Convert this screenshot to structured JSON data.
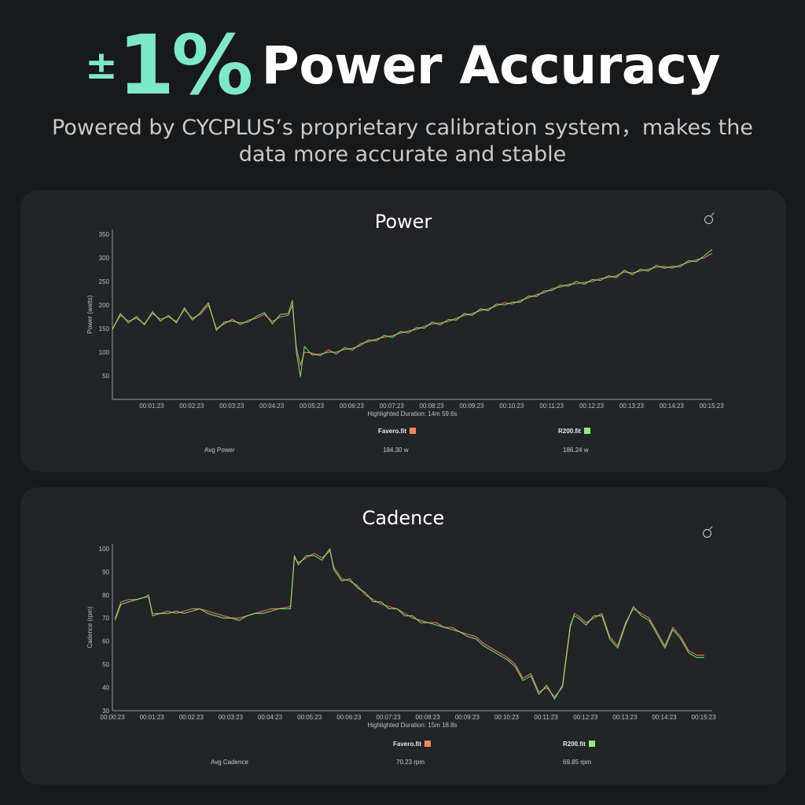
{
  "hero": {
    "plusminus": "±",
    "accent": "1%",
    "rest": "Power Accuracy",
    "subtitle_line1": "Powered by CYCPLUS’s proprietary calibration system，makes the",
    "subtitle_line2": "data more accurate and stable"
  },
  "colors": {
    "favero": "#f08a5d",
    "r200": "#8ef07a",
    "accent": "#7ee8c8"
  },
  "chart_data": [
    {
      "type": "line",
      "title": "Power",
      "ylabel": "Power (watts)",
      "xlabel": "Highlighted Duration: 14m 59.6s",
      "ylim": [
        0,
        360
      ],
      "yticks": [
        50,
        100,
        150,
        200,
        250,
        300,
        350
      ],
      "xlim_minutes": [
        0.4,
        15.4
      ],
      "xticks": [
        "00:01:23",
        "00:02:23",
        "00:03:23",
        "00:04:23",
        "00:05:23",
        "00:06:23",
        "00:07:23",
        "00:08:23",
        "00:09:23",
        "00:10:23",
        "00:11:23",
        "00:12:23",
        "00:13:23",
        "00:14:23",
        "00:15:23"
      ],
      "xtick_minutes": [
        1.383,
        2.383,
        3.383,
        4.383,
        5.383,
        6.383,
        7.383,
        8.383,
        9.383,
        10.383,
        11.383,
        12.383,
        13.383,
        14.383,
        15.383
      ],
      "grid": false,
      "legend": [
        "Favero.fit",
        "R200.fit"
      ],
      "summary_label": "Avg Power",
      "summary_values": [
        "184.30 w",
        "186.24 w"
      ],
      "x": [
        0.4,
        0.6,
        0.8,
        1.0,
        1.2,
        1.4,
        1.6,
        1.8,
        2.0,
        2.2,
        2.4,
        2.6,
        2.8,
        3.0,
        3.2,
        3.4,
        3.6,
        3.8,
        4.0,
        4.2,
        4.4,
        4.6,
        4.8,
        4.9,
        5.0,
        5.1,
        5.2,
        5.4,
        5.6,
        5.8,
        6.0,
        6.2,
        6.4,
        6.6,
        6.8,
        7.0,
        7.2,
        7.4,
        7.6,
        7.8,
        8.0,
        8.2,
        8.4,
        8.6,
        8.8,
        9.0,
        9.2,
        9.4,
        9.6,
        9.8,
        10.0,
        10.2,
        10.4,
        10.6,
        10.8,
        11.0,
        11.2,
        11.4,
        11.6,
        11.8,
        12.0,
        12.2,
        12.4,
        12.6,
        12.8,
        13.0,
        13.2,
        13.4,
        13.6,
        13.8,
        14.0,
        14.2,
        14.4,
        14.6,
        14.8,
        15.0,
        15.2,
        15.4
      ],
      "series": [
        {
          "name": "Favero.fit",
          "values": [
            150,
            178,
            166,
            172,
            160,
            182,
            170,
            175,
            165,
            190,
            172,
            180,
            200,
            150,
            160,
            170,
            158,
            168,
            172,
            180,
            165,
            175,
            178,
            200,
            110,
            72,
            100,
            98,
            92,
            105,
            96,
            110,
            104,
            118,
            122,
            128,
            132,
            135,
            140,
            145,
            148,
            155,
            160,
            162,
            165,
            172,
            178,
            182,
            188,
            192,
            198,
            205,
            202,
            210,
            215,
            222,
            226,
            235,
            238,
            244,
            245,
            248,
            250,
            256,
            258,
            262,
            270,
            268,
            272,
            276,
            280,
            282,
            278,
            285,
            290,
            296,
            300,
            310
          ]
        },
        {
          "name": "R200.fit",
          "values": [
            148,
            182,
            162,
            176,
            158,
            186,
            166,
            178,
            162,
            194,
            168,
            184,
            205,
            146,
            164,
            166,
            162,
            164,
            176,
            184,
            160,
            180,
            182,
            210,
            100,
            48,
            112,
            94,
            96,
            100,
            100,
            106,
            108,
            114,
            126,
            124,
            136,
            131,
            144,
            141,
            152,
            151,
            164,
            158,
            169,
            168,
            182,
            178,
            192,
            188,
            202,
            200,
            206,
            206,
            219,
            218,
            230,
            231,
            242,
            240,
            250,
            244,
            254,
            252,
            262,
            258,
            274,
            264,
            276,
            272,
            284,
            278,
            282,
            281,
            294,
            292,
            304,
            318
          ]
        }
      ]
    },
    {
      "type": "line",
      "title": "Cadence",
      "ylabel": "Cadence (rpm)",
      "xlabel": "Highlighted Duration: 15m 18.8s",
      "ylim": [
        30,
        102
      ],
      "yticks": [
        30,
        40,
        50,
        60,
        70,
        80,
        90,
        100
      ],
      "xlim_minutes": [
        0.383,
        15.6
      ],
      "xticks": [
        "00:00:23",
        "00:01:23",
        "00:02:23",
        "00:03:23",
        "00:04:23",
        "00:05:23",
        "00:06:23",
        "00:07:23",
        "00:08:23",
        "00:09:23",
        "00:10:23",
        "00:11:23",
        "00:12:23",
        "00:13:23",
        "00:14:23",
        "00:15:23"
      ],
      "xtick_minutes": [
        0.383,
        1.383,
        2.383,
        3.383,
        4.383,
        5.383,
        6.383,
        7.383,
        8.383,
        9.383,
        10.383,
        11.383,
        12.383,
        13.383,
        14.383,
        15.383
      ],
      "grid": false,
      "legend": [
        "Favero.fit",
        "R200.fit"
      ],
      "summary_label": "Avg Cadence",
      "summary_values": [
        "70.23 rpm",
        "69.85 rpm"
      ],
      "x": [
        0.45,
        0.6,
        0.8,
        1.0,
        1.2,
        1.3,
        1.4,
        1.6,
        1.8,
        2.0,
        2.2,
        2.4,
        2.6,
        2.8,
        3.0,
        3.2,
        3.4,
        3.6,
        3.8,
        4.0,
        4.2,
        4.4,
        4.6,
        4.9,
        5.0,
        5.1,
        5.3,
        5.5,
        5.7,
        5.9,
        6.0,
        6.2,
        6.4,
        6.6,
        6.8,
        7.0,
        7.2,
        7.4,
        7.6,
        7.8,
        8.0,
        8.2,
        8.4,
        8.6,
        8.8,
        9.0,
        9.2,
        9.4,
        9.6,
        9.8,
        10.0,
        10.2,
        10.4,
        10.6,
        10.8,
        11.0,
        11.2,
        11.4,
        11.6,
        11.8,
        12.0,
        12.1,
        12.2,
        12.4,
        12.6,
        12.8,
        13.0,
        13.2,
        13.4,
        13.6,
        13.8,
        14.0,
        14.2,
        14.4,
        14.6,
        14.8,
        15.0,
        15.2,
        15.4
      ],
      "series": [
        {
          "name": "Favero.fit",
          "values": [
            70,
            77,
            78,
            78,
            79,
            79,
            72,
            72,
            73,
            72,
            73,
            74,
            74,
            73,
            72,
            71,
            70,
            70,
            71,
            72,
            73,
            74,
            74,
            75,
            96,
            94,
            96,
            98,
            96,
            99,
            92,
            87,
            86,
            84,
            80,
            78,
            76,
            75,
            74,
            72,
            70,
            69,
            68,
            68,
            66,
            66,
            64,
            63,
            62,
            59,
            57,
            55,
            53,
            50,
            44,
            46,
            38,
            40,
            36,
            40,
            66,
            72,
            71,
            68,
            70,
            72,
            62,
            58,
            68,
            74,
            72,
            70,
            64,
            58,
            66,
            62,
            56,
            54,
            54
          ]
        },
        {
          "name": "R200.fit",
          "values": [
            69,
            76,
            77,
            78,
            79,
            80,
            71,
            72,
            72,
            73,
            72,
            73,
            74,
            72,
            71,
            70,
            70,
            69,
            71,
            72,
            72,
            73,
            74,
            74,
            97,
            93,
            97,
            97,
            95,
            100,
            91,
            86,
            87,
            83,
            81,
            77,
            77,
            74,
            74,
            71,
            71,
            68,
            68,
            67,
            66,
            65,
            64,
            62,
            61,
            58,
            56,
            54,
            52,
            49,
            43,
            45,
            37,
            41,
            35,
            41,
            67,
            71,
            70,
            67,
            71,
            71,
            61,
            57,
            67,
            75,
            71,
            69,
            63,
            57,
            65,
            61,
            55,
            53,
            53
          ]
        }
      ]
    }
  ]
}
